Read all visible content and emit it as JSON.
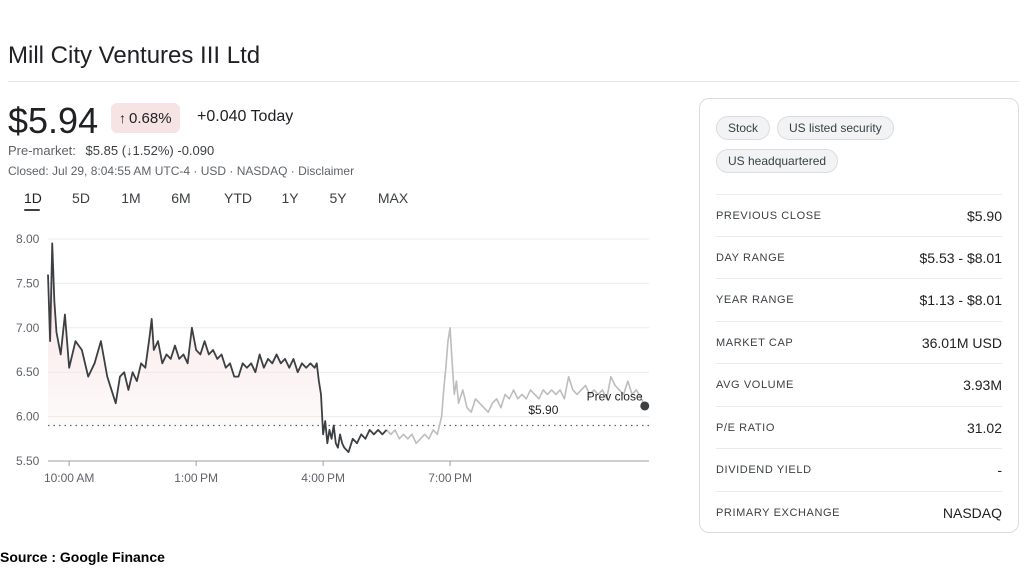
{
  "title": "Mill City Ventures III Ltd",
  "quote": {
    "price": "$5.94",
    "change_percent": "0.68%",
    "change_today": "+0.040 Today",
    "premarket_label": "Pre-market:",
    "premarket_price": "$5.85",
    "premarket_percent": "(↓1.52%)",
    "premarket_change": "-0.090",
    "closed_line": "Closed: Jul 29, 8:04:55 AM UTC-4 · USD · NASDAQ · Disclaimer"
  },
  "tabs": [
    "1D",
    "5D",
    "1M",
    "6M",
    "YTD",
    "1Y",
    "5Y",
    "MAX"
  ],
  "active_tab": "1D",
  "chart_data": {
    "type": "line",
    "ylim": [
      5.5,
      8.0
    ],
    "y_ticks": [
      "8.00",
      "7.50",
      "7.00",
      "6.50",
      "6.00",
      "5.50"
    ],
    "x_ticks": [
      "10:00 AM",
      "1:00 PM",
      "4:00 PM",
      "7:00 PM"
    ],
    "prev_close": 5.9,
    "prev_close_label": "Prev close",
    "prev_close_value": "$5.90",
    "colors": {
      "regular": "#3c4043",
      "extended": "#bdbdbd",
      "fill": "#f7e1e1",
      "dot": "#3c4043"
    },
    "regular_session": [
      [
        9.5,
        7.6
      ],
      [
        9.55,
        6.85
      ],
      [
        9.6,
        7.95
      ],
      [
        9.65,
        7.3
      ],
      [
        9.7,
        6.95
      ],
      [
        9.8,
        6.7
      ],
      [
        9.9,
        7.15
      ],
      [
        10.0,
        6.55
      ],
      [
        10.15,
        6.85
      ],
      [
        10.3,
        6.75
      ],
      [
        10.45,
        6.45
      ],
      [
        10.6,
        6.6
      ],
      [
        10.75,
        6.85
      ],
      [
        10.9,
        6.45
      ],
      [
        11.0,
        6.3
      ],
      [
        11.1,
        6.15
      ],
      [
        11.2,
        6.45
      ],
      [
        11.3,
        6.5
      ],
      [
        11.4,
        6.3
      ],
      [
        11.5,
        6.5
      ],
      [
        11.6,
        6.4
      ],
      [
        11.7,
        6.6
      ],
      [
        11.8,
        6.55
      ],
      [
        11.9,
        6.9
      ],
      [
        11.95,
        7.1
      ],
      [
        12.0,
        6.75
      ],
      [
        12.1,
        6.85
      ],
      [
        12.2,
        6.6
      ],
      [
        12.3,
        6.7
      ],
      [
        12.4,
        6.65
      ],
      [
        12.5,
        6.8
      ],
      [
        12.6,
        6.65
      ],
      [
        12.7,
        6.7
      ],
      [
        12.8,
        6.6
      ],
      [
        12.9,
        7.0
      ],
      [
        13.0,
        6.75
      ],
      [
        13.1,
        6.7
      ],
      [
        13.2,
        6.85
      ],
      [
        13.3,
        6.7
      ],
      [
        13.4,
        6.75
      ],
      [
        13.5,
        6.65
      ],
      [
        13.6,
        6.7
      ],
      [
        13.7,
        6.55
      ],
      [
        13.8,
        6.6
      ],
      [
        13.9,
        6.45
      ],
      [
        14.0,
        6.45
      ],
      [
        14.1,
        6.6
      ],
      [
        14.2,
        6.55
      ],
      [
        14.3,
        6.6
      ],
      [
        14.4,
        6.5
      ],
      [
        14.5,
        6.7
      ],
      [
        14.6,
        6.55
      ],
      [
        14.7,
        6.65
      ],
      [
        14.8,
        6.6
      ],
      [
        14.9,
        6.7
      ],
      [
        15.0,
        6.6
      ],
      [
        15.1,
        6.65
      ],
      [
        15.2,
        6.55
      ],
      [
        15.3,
        6.65
      ],
      [
        15.4,
        6.5
      ],
      [
        15.5,
        6.6
      ],
      [
        15.6,
        6.55
      ],
      [
        15.7,
        6.6
      ],
      [
        15.8,
        6.55
      ],
      [
        15.85,
        6.6
      ],
      [
        15.9,
        6.4
      ],
      [
        15.95,
        6.25
      ],
      [
        16.0,
        5.8
      ],
      [
        16.05,
        5.95
      ],
      [
        16.1,
        5.7
      ],
      [
        16.15,
        5.85
      ],
      [
        16.2,
        5.75
      ],
      [
        16.25,
        5.9
      ],
      [
        16.3,
        5.7
      ],
      [
        16.35,
        5.65
      ],
      [
        16.4,
        5.8
      ],
      [
        16.45,
        5.7
      ],
      [
        16.5,
        5.65
      ],
      [
        16.6,
        5.6
      ],
      [
        16.7,
        5.75
      ],
      [
        16.8,
        5.7
      ],
      [
        16.9,
        5.8
      ],
      [
        17.0,
        5.75
      ],
      [
        17.1,
        5.85
      ],
      [
        17.2,
        5.8
      ],
      [
        17.3,
        5.85
      ],
      [
        17.4,
        5.8
      ],
      [
        17.5,
        5.85
      ]
    ],
    "after_hours": [
      [
        17.5,
        5.85
      ],
      [
        17.6,
        5.8
      ],
      [
        17.7,
        5.85
      ],
      [
        17.8,
        5.75
      ],
      [
        17.9,
        5.8
      ],
      [
        18.0,
        5.75
      ],
      [
        18.1,
        5.8
      ],
      [
        18.2,
        5.7
      ],
      [
        18.3,
        5.75
      ],
      [
        18.4,
        5.8
      ],
      [
        18.5,
        5.75
      ],
      [
        18.6,
        5.85
      ],
      [
        18.7,
        5.8
      ],
      [
        18.8,
        6.0
      ],
      [
        18.85,
        6.3
      ],
      [
        18.9,
        6.55
      ],
      [
        18.95,
        6.85
      ],
      [
        19.0,
        7.0
      ],
      [
        19.05,
        6.6
      ],
      [
        19.1,
        6.25
      ],
      [
        19.15,
        6.4
      ],
      [
        19.2,
        6.15
      ],
      [
        19.3,
        6.3
      ],
      [
        19.4,
        6.1
      ],
      [
        19.5,
        6.05
      ],
      [
        19.6,
        6.2
      ],
      [
        19.7,
        6.15
      ],
      [
        19.8,
        6.1
      ],
      [
        19.9,
        6.05
      ],
      [
        20.0,
        6.15
      ],
      [
        20.1,
        6.2
      ],
      [
        20.2,
        6.1
      ],
      [
        20.3,
        6.25
      ],
      [
        20.4,
        6.2
      ],
      [
        20.5,
        6.3
      ],
      [
        20.6,
        6.2
      ],
      [
        20.7,
        6.25
      ],
      [
        20.8,
        6.2
      ],
      [
        20.9,
        6.3
      ],
      [
        21.0,
        6.25
      ],
      [
        21.1,
        6.2
      ],
      [
        21.2,
        6.3
      ],
      [
        21.3,
        6.25
      ],
      [
        21.4,
        6.3
      ],
      [
        21.5,
        6.25
      ],
      [
        21.6,
        6.3
      ],
      [
        21.7,
        6.2
      ],
      [
        21.8,
        6.45
      ],
      [
        21.9,
        6.3
      ],
      [
        22.0,
        6.25
      ],
      [
        22.1,
        6.3
      ],
      [
        22.2,
        6.35
      ],
      [
        22.3,
        6.25
      ],
      [
        22.4,
        6.3
      ],
      [
        22.5,
        6.25
      ],
      [
        22.6,
        6.3
      ],
      [
        22.7,
        6.2
      ],
      [
        22.8,
        6.45
      ],
      [
        22.9,
        6.35
      ],
      [
        23.0,
        6.3
      ],
      [
        23.1,
        6.25
      ],
      [
        23.2,
        6.4
      ],
      [
        23.3,
        6.25
      ],
      [
        23.4,
        6.3
      ],
      [
        23.5,
        6.22
      ],
      [
        23.6,
        6.12
      ]
    ]
  },
  "tags": [
    "Stock",
    "US listed security",
    "US headquartered"
  ],
  "stats": [
    {
      "label": "PREVIOUS CLOSE",
      "value": "$5.90"
    },
    {
      "label": "DAY RANGE",
      "value": "$5.53 - $8.01"
    },
    {
      "label": "YEAR RANGE",
      "value": "$1.13 - $8.01"
    },
    {
      "label": "MARKET CAP",
      "value": "36.01M USD"
    },
    {
      "label": "AVG VOLUME",
      "value": "3.93M"
    },
    {
      "label": "P/E RATIO",
      "value": "31.02"
    },
    {
      "label": "DIVIDEND YIELD",
      "value": "-"
    },
    {
      "label": "PRIMARY EXCHANGE",
      "value": "NASDAQ"
    }
  ],
  "source": "Source : Google Finance"
}
